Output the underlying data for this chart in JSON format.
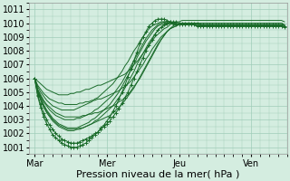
{
  "bg_color": "#d4ede0",
  "grid_color": "#a0ccb8",
  "line_color": "#1a6b2a",
  "xlabel": "Pression niveau de la mer( hPa )",
  "xlabel_fontsize": 8,
  "tick_fontsize": 7,
  "ylim": [
    1000.5,
    1011.5
  ],
  "yticks": [
    1001,
    1002,
    1003,
    1004,
    1005,
    1006,
    1007,
    1008,
    1009,
    1010,
    1011
  ],
  "day_labels": [
    "Mar",
    "Mer",
    "Jeu",
    "Ven"
  ],
  "day_positions": [
    0,
    48,
    96,
    144
  ],
  "xlim": [
    -4,
    168
  ],
  "series": [
    [
      1006.0,
      1005.8,
      1005.6,
      1005.4,
      1005.2,
      1005.1,
      1005.0,
      1004.9,
      1004.8,
      1004.8,
      1004.8,
      1004.8,
      1004.9,
      1004.9,
      1005.0,
      1005.0,
      1005.1,
      1005.2,
      1005.2,
      1005.3,
      1005.4,
      1005.5,
      1005.5,
      1005.6,
      1005.7,
      1005.8,
      1005.9,
      1006.0,
      1006.1,
      1006.2,
      1006.3,
      1006.5,
      1006.7,
      1007.0,
      1007.2,
      1007.5,
      1007.8,
      1008.1,
      1008.4,
      1008.7,
      1009.0,
      1009.2,
      1009.4,
      1009.6,
      1009.7,
      1009.9,
      1010.0,
      1010.1,
      1010.1,
      1010.2,
      1010.2,
      1010.2,
      1010.2,
      1010.2,
      1010.2,
      1010.2,
      1010.2,
      1010.2,
      1010.2,
      1010.2,
      1010.2,
      1010.2,
      1010.2,
      1010.2,
      1010.2,
      1010.2,
      1010.2,
      1010.2,
      1010.2,
      1010.2,
      1010.2,
      1010.2,
      1010.2,
      1010.2,
      1010.2,
      1010.2,
      1010.2,
      1010.2,
      1010.2,
      1010.2,
      1010.2,
      1010.2,
      1010.2,
      1010.1
    ],
    [
      1006.0,
      1005.5,
      1005.2,
      1004.9,
      1004.7,
      1004.5,
      1004.4,
      1004.3,
      1004.2,
      1004.2,
      1004.1,
      1004.1,
      1004.1,
      1004.1,
      1004.1,
      1004.2,
      1004.2,
      1004.3,
      1004.3,
      1004.4,
      1004.4,
      1004.5,
      1004.5,
      1004.6,
      1004.7,
      1004.8,
      1004.9,
      1005.0,
      1005.1,
      1005.3,
      1005.4,
      1005.6,
      1005.8,
      1006.1,
      1006.4,
      1006.7,
      1007.0,
      1007.4,
      1007.7,
      1008.1,
      1008.4,
      1008.7,
      1009.0,
      1009.2,
      1009.4,
      1009.6,
      1009.7,
      1009.8,
      1009.9,
      1009.9,
      1010.0,
      1010.0,
      1010.0,
      1010.0,
      1010.0,
      1010.0,
      1010.0,
      1010.0,
      1010.0,
      1010.0,
      1010.0,
      1010.0,
      1010.0,
      1010.0,
      1010.0,
      1010.0,
      1010.0,
      1010.0,
      1010.0,
      1010.0,
      1010.0,
      1010.0,
      1010.0,
      1010.0,
      1010.0,
      1010.0,
      1010.0,
      1010.0,
      1010.0,
      1010.0,
      1010.0,
      1010.0,
      1010.0,
      1009.9
    ],
    [
      1006.0,
      1005.2,
      1004.8,
      1004.4,
      1004.1,
      1003.9,
      1003.7,
      1003.5,
      1003.4,
      1003.3,
      1003.2,
      1003.2,
      1003.2,
      1003.2,
      1003.2,
      1003.2,
      1003.3,
      1003.3,
      1003.4,
      1003.4,
      1003.5,
      1003.5,
      1003.6,
      1003.7,
      1003.8,
      1003.9,
      1004.0,
      1004.1,
      1004.3,
      1004.4,
      1004.6,
      1004.8,
      1005.1,
      1005.4,
      1005.7,
      1006.0,
      1006.4,
      1006.8,
      1007.2,
      1007.6,
      1008.0,
      1008.4,
      1008.8,
      1009.1,
      1009.4,
      1009.6,
      1009.8,
      1009.9,
      1010.0,
      1010.0,
      1010.0,
      1010.0,
      1010.0,
      1010.0,
      1010.0,
      1009.9,
      1009.9,
      1009.9,
      1009.9,
      1009.9,
      1009.9,
      1009.9,
      1009.9,
      1009.9,
      1009.9,
      1009.9,
      1009.9,
      1009.9,
      1009.9,
      1009.9,
      1009.9,
      1009.9,
      1009.9,
      1009.9,
      1009.9,
      1009.9,
      1009.9,
      1009.9,
      1009.9,
      1009.9,
      1009.9,
      1009.9,
      1009.9,
      1009.8
    ],
    [
      1006.0,
      1005.0,
      1004.5,
      1004.0,
      1003.6,
      1003.3,
      1003.0,
      1002.8,
      1002.6,
      1002.5,
      1002.4,
      1002.3,
      1002.3,
      1002.3,
      1002.3,
      1002.4,
      1002.4,
      1002.5,
      1002.6,
      1002.7,
      1002.8,
      1002.9,
      1003.0,
      1003.1,
      1003.2,
      1003.3,
      1003.5,
      1003.7,
      1003.9,
      1004.1,
      1004.4,
      1004.7,
      1005.0,
      1005.3,
      1005.7,
      1006.1,
      1006.5,
      1006.9,
      1007.3,
      1007.7,
      1008.1,
      1008.5,
      1008.8,
      1009.1,
      1009.4,
      1009.6,
      1009.7,
      1009.8,
      1009.9,
      1009.9,
      1009.9,
      1009.9,
      1009.9,
      1009.9,
      1009.9,
      1009.8,
      1009.8,
      1009.8,
      1009.8,
      1009.8,
      1009.8,
      1009.8,
      1009.8,
      1009.8,
      1009.8,
      1009.8,
      1009.8,
      1009.8,
      1009.8,
      1009.8,
      1009.8,
      1009.8,
      1009.8,
      1009.8,
      1009.8,
      1009.8,
      1009.8,
      1009.8,
      1009.8,
      1009.8,
      1009.8,
      1009.8,
      1009.8,
      1009.7
    ],
    [
      1006.0,
      1004.8,
      1004.1,
      1003.5,
      1003.0,
      1002.6,
      1002.3,
      1002.0,
      1001.8,
      1001.6,
      1001.5,
      1001.4,
      1001.3,
      1001.3,
      1001.3,
      1001.4,
      1001.5,
      1001.6,
      1001.7,
      1001.8,
      1002.0,
      1002.1,
      1002.3,
      1002.5,
      1002.7,
      1002.9,
      1003.2,
      1003.5,
      1003.8,
      1004.2,
      1004.6,
      1005.0,
      1005.5,
      1006.0,
      1006.5,
      1007.0,
      1007.5,
      1008.0,
      1008.4,
      1008.8,
      1009.2,
      1009.5,
      1009.7,
      1009.9,
      1010.0,
      1010.1,
      1010.1,
      1010.1,
      1010.0,
      1010.0,
      1010.0,
      1010.0,
      1010.0,
      1010.0,
      1010.0,
      1009.9,
      1009.9,
      1009.9,
      1009.9,
      1009.9,
      1009.9,
      1009.9,
      1009.9,
      1009.9,
      1009.9,
      1009.9,
      1009.9,
      1009.9,
      1009.9,
      1009.9,
      1009.9,
      1009.9,
      1009.9,
      1009.9,
      1009.9,
      1009.9,
      1009.9,
      1009.9,
      1009.9,
      1009.9,
      1009.9,
      1009.9,
      1009.9,
      1009.8
    ],
    [
      1006.0,
      1005.0,
      1004.4,
      1003.9,
      1003.5,
      1003.2,
      1002.9,
      1002.7,
      1002.5,
      1002.4,
      1002.3,
      1002.2,
      1002.2,
      1002.2,
      1002.3,
      1002.3,
      1002.4,
      1002.5,
      1002.6,
      1002.7,
      1002.9,
      1003.0,
      1003.2,
      1003.4,
      1003.6,
      1003.8,
      1004.0,
      1004.3,
      1004.6,
      1004.9,
      1005.3,
      1005.7,
      1006.1,
      1006.5,
      1007.0,
      1007.4,
      1007.8,
      1008.2,
      1008.6,
      1008.9,
      1009.2,
      1009.5,
      1009.7,
      1009.8,
      1009.9,
      1010.0,
      1010.0,
      1010.0,
      1009.9,
      1009.9,
      1009.9,
      1009.9,
      1009.9,
      1009.9,
      1009.8,
      1009.8,
      1009.8,
      1009.8,
      1009.8,
      1009.8,
      1009.8,
      1009.8,
      1009.8,
      1009.8,
      1009.8,
      1009.8,
      1009.8,
      1009.8,
      1009.8,
      1009.8,
      1009.8,
      1009.8,
      1009.8,
      1009.8,
      1009.8,
      1009.8,
      1009.8,
      1009.8,
      1009.8,
      1009.8,
      1009.8,
      1009.8,
      1009.8,
      1009.7
    ],
    [
      1006.0,
      1005.2,
      1004.7,
      1004.3,
      1004.0,
      1003.7,
      1003.5,
      1003.3,
      1003.2,
      1003.1,
      1003.0,
      1003.0,
      1003.0,
      1003.0,
      1003.1,
      1003.1,
      1003.2,
      1003.3,
      1003.4,
      1003.5,
      1003.7,
      1003.8,
      1004.0,
      1004.2,
      1004.4,
      1004.6,
      1004.8,
      1005.1,
      1005.4,
      1005.7,
      1006.1,
      1006.5,
      1006.9,
      1007.3,
      1007.7,
      1008.1,
      1008.5,
      1008.9,
      1009.2,
      1009.5,
      1009.7,
      1009.9,
      1010.0,
      1010.1,
      1010.1,
      1010.1,
      1010.0,
      1010.0,
      1009.9,
      1009.9,
      1009.9,
      1009.9,
      1009.9,
      1009.9,
      1009.8,
      1009.8,
      1009.8,
      1009.8,
      1009.8,
      1009.8,
      1009.8,
      1009.8,
      1009.8,
      1009.8,
      1009.8,
      1009.8,
      1009.8,
      1009.8,
      1009.8,
      1009.8,
      1009.8,
      1009.8,
      1009.8,
      1009.8,
      1009.8,
      1009.8,
      1009.8,
      1009.8,
      1009.8,
      1009.8,
      1009.8,
      1009.8,
      1009.8,
      1009.7
    ],
    [
      1006.0,
      1005.4,
      1005.0,
      1004.7,
      1004.4,
      1004.2,
      1004.0,
      1003.9,
      1003.8,
      1003.7,
      1003.7,
      1003.7,
      1003.7,
      1003.7,
      1003.8,
      1003.9,
      1004.0,
      1004.1,
      1004.2,
      1004.3,
      1004.5,
      1004.6,
      1004.8,
      1005.0,
      1005.2,
      1005.4,
      1005.6,
      1005.9,
      1006.2,
      1006.5,
      1006.9,
      1007.2,
      1007.6,
      1008.0,
      1008.3,
      1008.7,
      1009.0,
      1009.3,
      1009.6,
      1009.8,
      1009.9,
      1010.0,
      1010.1,
      1010.1,
      1010.0,
      1010.0,
      1009.9,
      1009.9,
      1009.9,
      1009.9,
      1009.9,
      1009.9,
      1009.9,
      1009.9,
      1009.8,
      1009.8,
      1009.8,
      1009.8,
      1009.8,
      1009.8,
      1009.8,
      1009.8,
      1009.8,
      1009.8,
      1009.8,
      1009.8,
      1009.8,
      1009.8,
      1009.8,
      1009.8,
      1009.8,
      1009.8,
      1009.8,
      1009.8,
      1009.8,
      1009.8,
      1009.8,
      1009.8,
      1009.8,
      1009.8,
      1009.8,
      1009.8,
      1009.8,
      1009.7
    ],
    [
      1006.0,
      1005.1,
      1004.6,
      1004.1,
      1003.7,
      1003.4,
      1003.1,
      1002.9,
      1002.7,
      1002.6,
      1002.5,
      1002.4,
      1002.4,
      1002.4,
      1002.4,
      1002.5,
      1002.6,
      1002.7,
      1002.8,
      1003.0,
      1003.1,
      1003.3,
      1003.5,
      1003.7,
      1003.9,
      1004.1,
      1004.4,
      1004.7,
      1005.0,
      1005.4,
      1005.8,
      1006.2,
      1006.6,
      1007.0,
      1007.5,
      1007.9,
      1008.3,
      1008.7,
      1009.0,
      1009.3,
      1009.6,
      1009.8,
      1009.9,
      1010.0,
      1010.0,
      1010.0,
      1010.0,
      1009.9,
      1009.9,
      1009.9,
      1009.9,
      1009.9,
      1009.9,
      1009.9,
      1009.8,
      1009.8,
      1009.8,
      1009.8,
      1009.8,
      1009.8,
      1009.8,
      1009.8,
      1009.8,
      1009.8,
      1009.8,
      1009.8,
      1009.8,
      1009.8,
      1009.8,
      1009.8,
      1009.8,
      1009.8,
      1009.8,
      1009.8,
      1009.8,
      1009.8,
      1009.8,
      1009.8,
      1009.8,
      1009.8,
      1009.8,
      1009.8,
      1009.8,
      1009.7
    ],
    [
      1006.0,
      1004.7,
      1003.9,
      1003.2,
      1002.7,
      1002.3,
      1001.9,
      1001.7,
      1001.5,
      1001.3,
      1001.2,
      1001.1,
      1001.0,
      1001.0,
      1001.0,
      1001.1,
      1001.2,
      1001.3,
      1001.5,
      1001.7,
      1001.9,
      1002.1,
      1002.4,
      1002.6,
      1002.9,
      1003.2,
      1003.6,
      1004.0,
      1004.5,
      1005.0,
      1005.5,
      1006.1,
      1006.7,
      1007.3,
      1007.9,
      1008.5,
      1009.0,
      1009.4,
      1009.8,
      1010.0,
      1010.2,
      1010.3,
      1010.3,
      1010.3,
      1010.2,
      1010.1,
      1010.0,
      1009.9,
      1009.9,
      1009.9,
      1009.9,
      1009.9,
      1009.9,
      1009.9,
      1009.8,
      1009.8,
      1009.8,
      1009.8,
      1009.8,
      1009.8,
      1009.8,
      1009.8,
      1009.8,
      1009.8,
      1009.8,
      1009.8,
      1009.8,
      1009.8,
      1009.8,
      1009.8,
      1009.8,
      1009.8,
      1009.8,
      1009.8,
      1009.8,
      1009.8,
      1009.8,
      1009.8,
      1009.8,
      1009.8,
      1009.8,
      1009.8,
      1009.8,
      1009.7
    ]
  ],
  "marker_series": [
    4,
    9
  ],
  "n_steps": 84,
  "step_hours": 2
}
